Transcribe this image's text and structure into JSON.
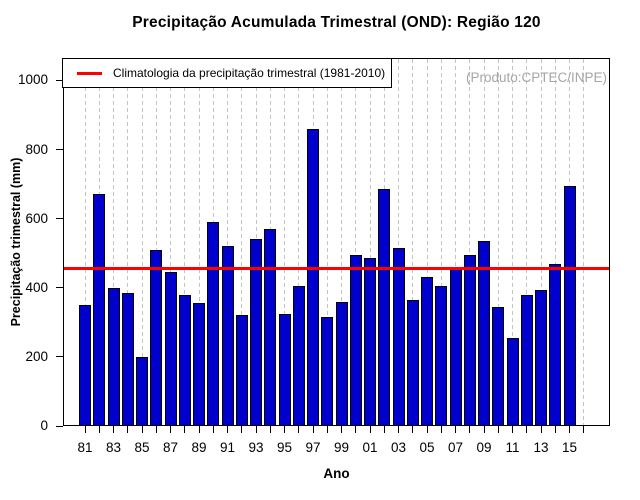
{
  "watermark": "(Produto:CPTEC/INPE)",
  "chart_data": {
    "type": "bar",
    "title": "Precipitação Acumulada Trimestral (OND): Região 120",
    "xlabel": "Ano",
    "ylabel": "Precipitação trimestral (mm)",
    "ylim": [
      0,
      1000
    ],
    "y_ticks": [
      0,
      200,
      400,
      600,
      800,
      1000
    ],
    "grid": "vertical-dashed",
    "grid_color": "#c4c4c4",
    "bar_color": "#0000CD",
    "bar_border_color": "#000000",
    "legend_position": "top-left",
    "categories": [
      "81",
      "82",
      "83",
      "84",
      "85",
      "86",
      "87",
      "88",
      "89",
      "90",
      "91",
      "92",
      "93",
      "94",
      "95",
      "96",
      "97",
      "98",
      "99",
      "00",
      "01",
      "02",
      "03",
      "04",
      "05",
      "06",
      "07",
      "08",
      "09",
      "10",
      "11",
      "12",
      "13",
      "14",
      "15"
    ],
    "values": [
      350,
      670,
      400,
      385,
      200,
      510,
      445,
      380,
      355,
      590,
      520,
      320,
      540,
      570,
      325,
      405,
      860,
      315,
      360,
      495,
      485,
      685,
      515,
      365,
      430,
      405,
      455,
      495,
      535,
      345,
      255,
      380,
      395,
      470,
      695
    ],
    "x_tick_labels": [
      "81",
      "83",
      "85",
      "87",
      "89",
      "91",
      "93",
      "95",
      "97",
      "99",
      "01",
      "03",
      "05",
      "07",
      "09",
      "11",
      "13",
      "15"
    ],
    "trailing_empty_slots": 1,
    "reference_line": {
      "label": "Climatologia da precipitação trimestral (1981-2010)",
      "value": 457,
      "color": "#FF0000"
    }
  }
}
